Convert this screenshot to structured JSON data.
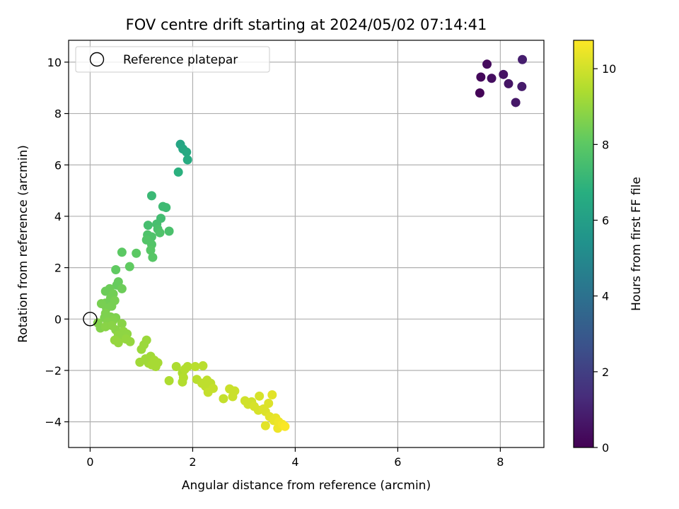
{
  "chart_data": {
    "type": "scatter",
    "title": "FOV centre drift starting at 2024/05/02 07:14:41",
    "xlabel": "Angular distance from reference (arcmin)",
    "ylabel": "Rotation from reference (arcmin)",
    "xlim": [
      -0.42,
      8.85
    ],
    "ylim": [
      -5.0,
      10.85
    ],
    "xticks": [
      0,
      2,
      4,
      6,
      8
    ],
    "yticks": [
      -4,
      -2,
      0,
      2,
      4,
      6,
      8,
      10
    ],
    "grid": true,
    "legend": {
      "placement": "top-left",
      "label": "Reference platepar"
    },
    "reference_point": {
      "x": 0,
      "y": 0
    },
    "colorbar": {
      "label": "Hours from first FF file",
      "range": [
        0,
        10.75
      ],
      "ticks": [
        0,
        2,
        4,
        6,
        8,
        10
      ],
      "colormap": "viridis"
    },
    "points": [
      {
        "x": 7.6,
        "y": 8.8,
        "h": 0.1
      },
      {
        "x": 7.62,
        "y": 9.42,
        "h": 0.2
      },
      {
        "x": 7.74,
        "y": 9.92,
        "h": 0.3
      },
      {
        "x": 7.83,
        "y": 9.37,
        "h": 0.4
      },
      {
        "x": 8.06,
        "y": 9.52,
        "h": 0.5
      },
      {
        "x": 8.16,
        "y": 9.16,
        "h": 0.6
      },
      {
        "x": 8.3,
        "y": 8.43,
        "h": 0.7
      },
      {
        "x": 8.42,
        "y": 9.05,
        "h": 0.8
      },
      {
        "x": 8.43,
        "y": 10.1,
        "h": 0.9
      },
      {
        "x": 1.76,
        "y": 6.8,
        "h": 6.3
      },
      {
        "x": 1.81,
        "y": 6.62,
        "h": 6.4
      },
      {
        "x": 1.88,
        "y": 6.5,
        "h": 6.5
      },
      {
        "x": 1.9,
        "y": 6.2,
        "h": 6.6
      },
      {
        "x": 1.72,
        "y": 5.72,
        "h": 6.8
      },
      {
        "x": 1.2,
        "y": 4.8,
        "h": 7.2
      },
      {
        "x": 1.42,
        "y": 4.38,
        "h": 7.3
      },
      {
        "x": 1.48,
        "y": 4.34,
        "h": 7.3
      },
      {
        "x": 1.38,
        "y": 3.92,
        "h": 7.4
      },
      {
        "x": 1.3,
        "y": 3.7,
        "h": 7.5
      },
      {
        "x": 1.13,
        "y": 3.65,
        "h": 7.5
      },
      {
        "x": 1.32,
        "y": 3.5,
        "h": 7.6
      },
      {
        "x": 1.54,
        "y": 3.42,
        "h": 7.6
      },
      {
        "x": 1.36,
        "y": 3.36,
        "h": 7.7
      },
      {
        "x": 1.12,
        "y": 3.28,
        "h": 7.7
      },
      {
        "x": 1.2,
        "y": 3.2,
        "h": 7.7
      },
      {
        "x": 1.1,
        "y": 3.08,
        "h": 7.8
      },
      {
        "x": 1.2,
        "y": 2.9,
        "h": 7.8
      },
      {
        "x": 1.18,
        "y": 2.68,
        "h": 7.9
      },
      {
        "x": 1.22,
        "y": 2.4,
        "h": 7.9
      },
      {
        "x": 0.62,
        "y": 2.6,
        "h": 8.0
      },
      {
        "x": 0.9,
        "y": 2.56,
        "h": 8.0
      },
      {
        "x": 0.77,
        "y": 2.04,
        "h": 8.1
      },
      {
        "x": 0.5,
        "y": 1.92,
        "h": 8.1
      },
      {
        "x": 0.55,
        "y": 1.45,
        "h": 8.2
      },
      {
        "x": 0.52,
        "y": 1.32,
        "h": 8.2
      },
      {
        "x": 0.62,
        "y": 1.18,
        "h": 8.3
      },
      {
        "x": 0.38,
        "y": 1.18,
        "h": 8.3
      },
      {
        "x": 0.3,
        "y": 1.08,
        "h": 8.3
      },
      {
        "x": 0.45,
        "y": 0.98,
        "h": 8.4
      },
      {
        "x": 0.4,
        "y": 0.82,
        "h": 8.4
      },
      {
        "x": 0.3,
        "y": 0.62,
        "h": 8.4
      },
      {
        "x": 0.48,
        "y": 0.72,
        "h": 8.5
      },
      {
        "x": 0.42,
        "y": 0.5,
        "h": 8.5
      },
      {
        "x": 0.32,
        "y": 0.42,
        "h": 8.5
      },
      {
        "x": 0.22,
        "y": 0.6,
        "h": 8.5
      },
      {
        "x": 0.3,
        "y": 0.22,
        "h": 8.6
      },
      {
        "x": 0.28,
        "y": 0.05,
        "h": 8.6
      },
      {
        "x": 0.4,
        "y": 0.08,
        "h": 8.6
      },
      {
        "x": 0.5,
        "y": 0.05,
        "h": 8.6
      },
      {
        "x": 0.45,
        "y": -0.05,
        "h": 8.7
      },
      {
        "x": 0.34,
        "y": -0.12,
        "h": 8.7
      },
      {
        "x": 0.15,
        "y": -0.15,
        "h": 8.7
      },
      {
        "x": 0.2,
        "y": -0.35,
        "h": 8.7
      },
      {
        "x": 0.3,
        "y": -0.3,
        "h": 8.8
      },
      {
        "x": 0.42,
        "y": -0.25,
        "h": 8.8
      },
      {
        "x": 0.5,
        "y": -0.42,
        "h": 8.8
      },
      {
        "x": 0.62,
        "y": -0.18,
        "h": 8.8
      },
      {
        "x": 0.65,
        "y": -0.48,
        "h": 8.9
      },
      {
        "x": 0.55,
        "y": -0.62,
        "h": 8.9
      },
      {
        "x": 0.72,
        "y": -0.58,
        "h": 8.9
      },
      {
        "x": 0.6,
        "y": -0.75,
        "h": 8.9
      },
      {
        "x": 0.48,
        "y": -0.82,
        "h": 9.0
      },
      {
        "x": 0.55,
        "y": -0.92,
        "h": 9.0
      },
      {
        "x": 0.7,
        "y": -0.78,
        "h": 9.0
      },
      {
        "x": 0.78,
        "y": -0.88,
        "h": 9.0
      },
      {
        "x": 1.1,
        "y": -0.82,
        "h": 9.1
      },
      {
        "x": 1.05,
        "y": -1.0,
        "h": 9.1
      },
      {
        "x": 1.0,
        "y": -1.18,
        "h": 9.1
      },
      {
        "x": 1.18,
        "y": -1.45,
        "h": 9.2
      },
      {
        "x": 1.08,
        "y": -1.55,
        "h": 9.2
      },
      {
        "x": 0.97,
        "y": -1.68,
        "h": 9.2
      },
      {
        "x": 1.14,
        "y": -1.72,
        "h": 9.2
      },
      {
        "x": 1.25,
        "y": -1.6,
        "h": 9.3
      },
      {
        "x": 1.32,
        "y": -1.7,
        "h": 9.3
      },
      {
        "x": 1.28,
        "y": -1.85,
        "h": 9.3
      },
      {
        "x": 1.2,
        "y": -1.78,
        "h": 9.3
      },
      {
        "x": 1.54,
        "y": -2.4,
        "h": 9.4
      },
      {
        "x": 1.68,
        "y": -1.85,
        "h": 9.4
      },
      {
        "x": 1.8,
        "y": -2.1,
        "h": 9.4
      },
      {
        "x": 1.85,
        "y": -1.95,
        "h": 9.5
      },
      {
        "x": 1.9,
        "y": -1.85,
        "h": 9.5
      },
      {
        "x": 1.82,
        "y": -2.28,
        "h": 9.5
      },
      {
        "x": 1.8,
        "y": -2.45,
        "h": 9.5
      },
      {
        "x": 2.05,
        "y": -1.85,
        "h": 9.6
      },
      {
        "x": 2.2,
        "y": -1.82,
        "h": 9.6
      },
      {
        "x": 2.08,
        "y": -2.35,
        "h": 9.6
      },
      {
        "x": 2.18,
        "y": -2.5,
        "h": 9.7
      },
      {
        "x": 2.25,
        "y": -2.62,
        "h": 9.7
      },
      {
        "x": 2.28,
        "y": -2.38,
        "h": 9.7
      },
      {
        "x": 2.35,
        "y": -2.5,
        "h": 9.7
      },
      {
        "x": 2.4,
        "y": -2.7,
        "h": 9.8
      },
      {
        "x": 2.3,
        "y": -2.85,
        "h": 9.8
      },
      {
        "x": 2.6,
        "y": -3.1,
        "h": 9.8
      },
      {
        "x": 2.72,
        "y": -2.72,
        "h": 9.9
      },
      {
        "x": 2.82,
        "y": -2.8,
        "h": 9.9
      },
      {
        "x": 2.78,
        "y": -3.02,
        "h": 9.9
      },
      {
        "x": 3.02,
        "y": -3.18,
        "h": 10.0
      },
      {
        "x": 3.08,
        "y": -3.32,
        "h": 10.0
      },
      {
        "x": 3.15,
        "y": -3.22,
        "h": 10.0
      },
      {
        "x": 3.2,
        "y": -3.4,
        "h": 10.1
      },
      {
        "x": 3.3,
        "y": -3.0,
        "h": 10.1
      },
      {
        "x": 3.28,
        "y": -3.55,
        "h": 10.1
      },
      {
        "x": 3.38,
        "y": -3.5,
        "h": 10.2
      },
      {
        "x": 3.42,
        "y": -3.6,
        "h": 10.2
      },
      {
        "x": 3.48,
        "y": -3.28,
        "h": 10.2
      },
      {
        "x": 3.55,
        "y": -2.95,
        "h": 10.3
      },
      {
        "x": 3.5,
        "y": -3.8,
        "h": 10.3
      },
      {
        "x": 3.42,
        "y": -4.15,
        "h": 10.3
      },
      {
        "x": 3.58,
        "y": -3.95,
        "h": 10.4
      },
      {
        "x": 3.62,
        "y": -3.85,
        "h": 10.4
      },
      {
        "x": 3.68,
        "y": -4.0,
        "h": 10.5
      },
      {
        "x": 3.66,
        "y": -4.25,
        "h": 10.5
      },
      {
        "x": 3.75,
        "y": -4.1,
        "h": 10.6
      },
      {
        "x": 3.8,
        "y": -4.18,
        "h": 10.7
      }
    ]
  }
}
